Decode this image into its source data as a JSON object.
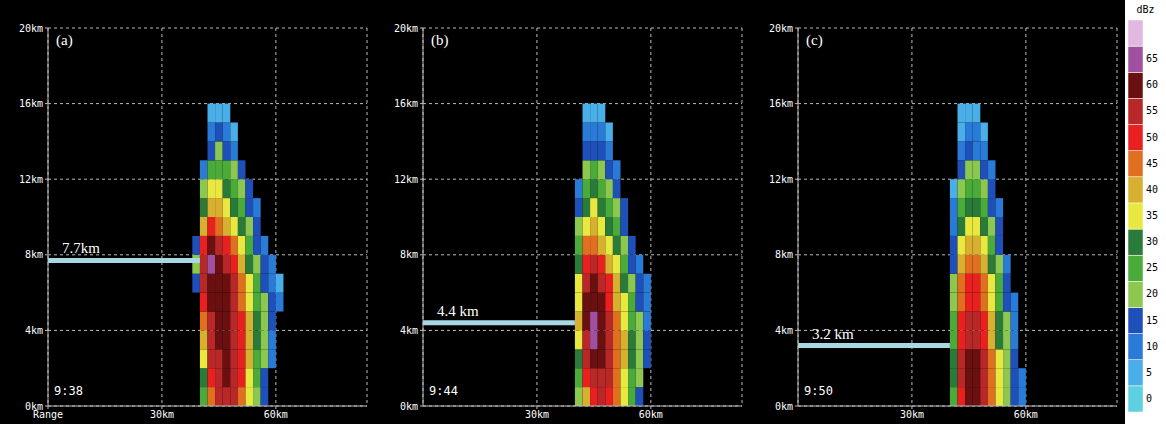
{
  "chart_data": [
    {
      "type": "heatmap",
      "label": "(a)",
      "time": "9:38",
      "annotation": {
        "text": "7.7km",
        "y": 7.7,
        "x_end": 40
      },
      "xlim": [
        0,
        84
      ],
      "xticks": [
        {
          "value": 0,
          "label": "Range"
        },
        {
          "value": 30,
          "label": "30km"
        },
        {
          "value": 60,
          "label": "60km"
        }
      ],
      "ylim": [
        0,
        20
      ],
      "yticks": [
        {
          "value": 0,
          "label": "0km"
        },
        {
          "value": 4,
          "label": "4km"
        },
        {
          "value": 8,
          "label": "8km"
        },
        {
          "value": 12,
          "label": "12km"
        },
        {
          "value": 16,
          "label": "16km"
        },
        {
          "value": 20,
          "label": "20km"
        }
      ],
      "grid": true,
      "cells": {
        "x_edges": [
          38,
          40,
          42,
          44,
          46,
          48,
          50,
          52,
          54,
          56,
          58,
          60,
          62
        ],
        "y_edges": [
          0,
          1,
          2,
          3,
          4,
          5,
          6,
          7,
          8,
          9,
          10,
          11,
          12,
          13,
          14,
          15,
          16
        ],
        "values": [
          [
            null,
            25,
            45,
            55,
            58,
            56,
            48,
            35,
            22,
            15,
            null,
            null
          ],
          [
            null,
            30,
            50,
            57,
            60,
            57,
            50,
            38,
            25,
            18,
            null,
            null
          ],
          [
            null,
            35,
            55,
            58,
            60,
            58,
            52,
            40,
            28,
            20,
            10,
            null
          ],
          [
            null,
            40,
            57,
            60,
            60,
            58,
            52,
            42,
            30,
            22,
            12,
            null
          ],
          [
            null,
            45,
            58,
            60,
            62,
            58,
            50,
            40,
            30,
            22,
            15,
            null
          ],
          [
            null,
            50,
            60,
            62,
            60,
            57,
            48,
            38,
            28,
            20,
            15,
            10
          ],
          [
            15,
            55,
            62,
            63,
            60,
            55,
            45,
            35,
            25,
            18,
            12,
            8
          ],
          [
            20,
            58,
            66,
            63,
            58,
            52,
            42,
            32,
            22,
            15,
            10,
            null
          ],
          [
            15,
            50,
            60,
            58,
            52,
            45,
            38,
            28,
            18,
            12,
            null,
            null
          ],
          [
            null,
            40,
            50,
            48,
            42,
            38,
            30,
            22,
            15,
            null,
            null,
            null
          ],
          [
            null,
            30,
            42,
            40,
            35,
            30,
            25,
            18,
            12,
            null,
            null,
            null
          ],
          [
            null,
            20,
            35,
            35,
            30,
            25,
            20,
            15,
            null,
            null,
            null,
            null
          ],
          [
            null,
            10,
            25,
            28,
            25,
            20,
            15,
            null,
            null,
            null,
            null,
            null
          ],
          [
            null,
            null,
            15,
            20,
            18,
            12,
            null,
            null,
            null,
            null,
            null,
            null
          ],
          [
            null,
            null,
            10,
            15,
            12,
            8,
            null,
            null,
            null,
            null,
            null,
            null
          ],
          [
            null,
            null,
            5,
            8,
            5,
            null,
            null,
            null,
            null,
            null,
            null,
            null
          ]
        ]
      }
    },
    {
      "type": "heatmap",
      "label": "(b)",
      "time": "9:44",
      "annotation": {
        "text": "4.4 km",
        "y": 4.4,
        "x_end": 40
      },
      "xlim": [
        0,
        84
      ],
      "xticks": [
        {
          "value": 30,
          "label": "30km"
        },
        {
          "value": 60,
          "label": "60km"
        }
      ],
      "ylim": [
        0,
        20
      ],
      "yticks": [
        {
          "value": 0,
          "label": "0km"
        },
        {
          "value": 4,
          "label": "4km"
        },
        {
          "value": 8,
          "label": "8km"
        },
        {
          "value": 12,
          "label": "12km"
        },
        {
          "value": 16,
          "label": "16km"
        },
        {
          "value": 20,
          "label": "20km"
        }
      ],
      "grid": true,
      "cells": {
        "x_edges": [
          38,
          40,
          42,
          44,
          46,
          48,
          50,
          52,
          54,
          56,
          58,
          60,
          62
        ],
        "y_edges": [
          0,
          1,
          2,
          3,
          4,
          5,
          6,
          7,
          8,
          9,
          10,
          11,
          12,
          13,
          14,
          15,
          16
        ],
        "values": [
          [
            null,
            20,
            40,
            52,
            55,
            52,
            45,
            35,
            25,
            18,
            null,
            null
          ],
          [
            null,
            25,
            50,
            58,
            58,
            55,
            48,
            38,
            28,
            20,
            null,
            null
          ],
          [
            null,
            30,
            55,
            62,
            60,
            56,
            48,
            40,
            30,
            22,
            15,
            null
          ],
          [
            null,
            35,
            58,
            66,
            62,
            56,
            48,
            40,
            30,
            22,
            15,
            null
          ],
          [
            null,
            40,
            60,
            67,
            62,
            55,
            46,
            38,
            28,
            20,
            12,
            null
          ],
          [
            null,
            38,
            60,
            62,
            60,
            52,
            44,
            35,
            25,
            18,
            12,
            null
          ],
          [
            null,
            35,
            58,
            60,
            56,
            50,
            40,
            30,
            22,
            15,
            10,
            null
          ],
          [
            null,
            30,
            52,
            55,
            50,
            44,
            35,
            25,
            18,
            12,
            null,
            null
          ],
          [
            null,
            25,
            45,
            48,
            44,
            38,
            30,
            22,
            15,
            null,
            null,
            null
          ],
          [
            null,
            20,
            38,
            40,
            38,
            32,
            25,
            18,
            null,
            null,
            null,
            null
          ],
          [
            null,
            15,
            32,
            35,
            32,
            28,
            20,
            15,
            null,
            null,
            null,
            null
          ],
          [
            null,
            10,
            28,
            30,
            28,
            22,
            15,
            null,
            null,
            null,
            null,
            null
          ],
          [
            null,
            null,
            20,
            25,
            22,
            18,
            10,
            null,
            null,
            null,
            null,
            null
          ],
          [
            null,
            null,
            15,
            18,
            15,
            12,
            null,
            null,
            null,
            null,
            null,
            null
          ],
          [
            null,
            null,
            10,
            12,
            10,
            8,
            null,
            null,
            null,
            null,
            null,
            null
          ],
          [
            null,
            null,
            5,
            8,
            5,
            null,
            null,
            null,
            null,
            null,
            null,
            null
          ]
        ]
      }
    },
    {
      "type": "heatmap",
      "label": "(c)",
      "time": "9:50",
      "annotation": {
        "text": "3.2 km",
        "y": 3.2,
        "x_end": 40
      },
      "xlim": [
        0,
        84
      ],
      "xticks": [
        {
          "value": 30,
          "label": "30km"
        },
        {
          "value": 60,
          "label": "60km"
        }
      ],
      "ylim": [
        0,
        20
      ],
      "yticks": [
        {
          "value": 0,
          "label": "0km"
        },
        {
          "value": 4,
          "label": "4km"
        },
        {
          "value": 8,
          "label": "8km"
        },
        {
          "value": 12,
          "label": "12km"
        },
        {
          "value": 16,
          "label": "16km"
        },
        {
          "value": 20,
          "label": "20km"
        }
      ],
      "grid": true,
      "cells": {
        "x_edges": [
          38,
          40,
          42,
          44,
          46,
          48,
          50,
          52,
          54,
          56,
          58,
          60,
          62
        ],
        "y_edges": [
          0,
          1,
          2,
          3,
          4,
          5,
          6,
          7,
          8,
          9,
          10,
          11,
          12,
          13,
          14,
          15,
          16
        ],
        "values": [
          [
            null,
            25,
            50,
            60,
            62,
            58,
            48,
            35,
            22,
            15,
            10,
            null
          ],
          [
            null,
            30,
            55,
            62,
            63,
            58,
            48,
            36,
            24,
            15,
            10,
            null
          ],
          [
            null,
            30,
            55,
            60,
            62,
            56,
            46,
            35,
            22,
            15,
            null,
            null
          ],
          [
            null,
            28,
            52,
            58,
            58,
            54,
            44,
            32,
            20,
            12,
            null,
            null
          ],
          [
            null,
            25,
            50,
            56,
            55,
            50,
            40,
            30,
            20,
            12,
            null,
            null
          ],
          [
            null,
            22,
            48,
            54,
            52,
            48,
            38,
            28,
            18,
            10,
            null,
            null
          ],
          [
            null,
            20,
            45,
            52,
            50,
            45,
            35,
            25,
            15,
            null,
            null,
            null
          ],
          [
            null,
            18,
            42,
            48,
            46,
            40,
            32,
            22,
            12,
            null,
            null,
            null
          ],
          [
            null,
            15,
            38,
            44,
            42,
            36,
            28,
            18,
            null,
            null,
            null,
            null
          ],
          [
            null,
            12,
            32,
            38,
            36,
            30,
            22,
            15,
            null,
            null,
            null,
            null
          ],
          [
            null,
            10,
            28,
            32,
            30,
            26,
            18,
            12,
            null,
            null,
            null,
            null
          ],
          [
            null,
            8,
            22,
            28,
            25,
            20,
            15,
            null,
            null,
            null,
            null,
            null
          ],
          [
            null,
            null,
            18,
            22,
            20,
            15,
            10,
            null,
            null,
            null,
            null,
            null
          ],
          [
            null,
            null,
            12,
            15,
            14,
            10,
            null,
            null,
            null,
            null,
            null,
            null
          ],
          [
            null,
            null,
            8,
            12,
            10,
            5,
            null,
            null,
            null,
            null,
            null,
            null
          ],
          [
            null,
            null,
            5,
            8,
            5,
            null,
            null,
            null,
            null,
            null,
            null,
            null
          ]
        ]
      }
    }
  ],
  "colorbar": {
    "title": "dBz",
    "range": [
      0,
      75
    ],
    "ticks": [
      0,
      5,
      10,
      15,
      20,
      25,
      30,
      35,
      40,
      45,
      50,
      55,
      60,
      65
    ],
    "colors": [
      "#5ed0e0",
      "#4aaee8",
      "#2a7ad8",
      "#1f4fb8",
      "#8cc850",
      "#4aaa3a",
      "#2a7a3a",
      "#e8e840",
      "#d8b030",
      "#e07020",
      "#e82020",
      "#b82828",
      "#6a1010",
      "#a050a0",
      "#e0b8e0"
    ]
  }
}
